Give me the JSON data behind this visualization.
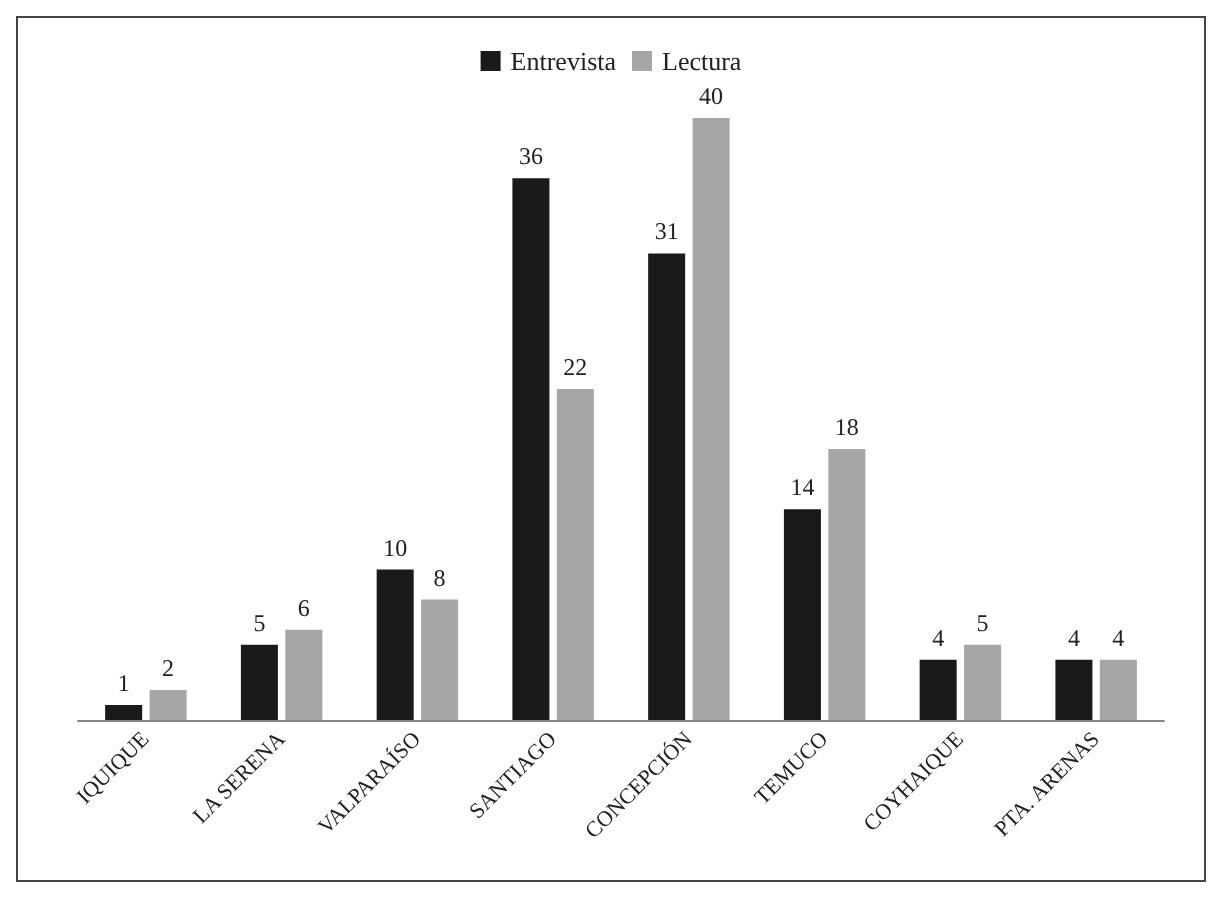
{
  "chart_data": {
    "type": "bar",
    "categories": [
      "IQUIQUE",
      "LA SERENA",
      "VALPARAÍSO",
      "SANTIAGO",
      "CONCEPCIÓN",
      "TEMUCO",
      "COYHAIQUE",
      "PTA. ARENAS"
    ],
    "series": [
      {
        "name": "Entrevista",
        "color": "#1a1a1a",
        "values": [
          1,
          5,
          10,
          36,
          31,
          14,
          4,
          4
        ]
      },
      {
        "name": "Lectura",
        "color": "#a6a6a6",
        "values": [
          2,
          6,
          8,
          22,
          40,
          18,
          5,
          4
        ]
      }
    ],
    "data_labels": true,
    "legend": "top"
  }
}
